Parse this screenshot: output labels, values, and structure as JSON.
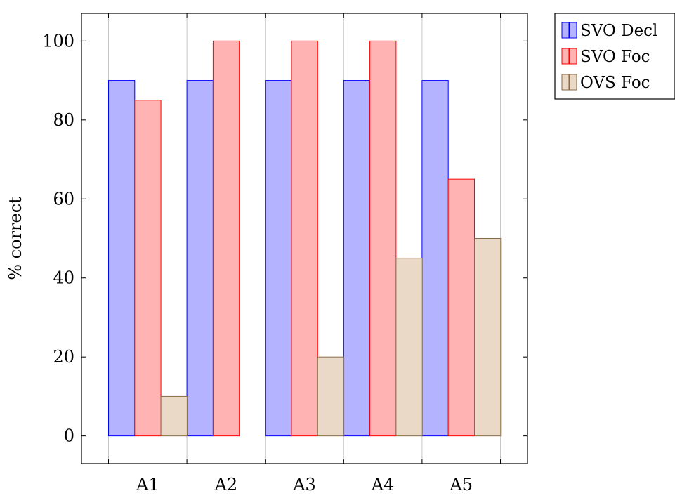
{
  "chart_data": {
    "type": "bar",
    "title": "",
    "xlabel": "",
    "ylabel": "% correct",
    "categories": [
      "A1",
      "A2",
      "A3",
      "A4",
      "A5"
    ],
    "ylim": [
      -7,
      107
    ],
    "yticks": [
      0,
      20,
      40,
      60,
      80,
      100
    ],
    "grid": "vertical",
    "legend_position": "outside-top-right",
    "series": [
      {
        "name": "SVO Decl",
        "values": [
          90,
          90,
          90,
          90,
          90
        ],
        "fill": "#b3b3ff",
        "stroke": "#0000ff"
      },
      {
        "name": "SVO Foc",
        "values": [
          85,
          100,
          100,
          100,
          65
        ],
        "fill": "#ffb3b3",
        "stroke": "#ff0000"
      },
      {
        "name": "OVS Foc",
        "values": [
          10,
          0,
          20,
          45,
          50
        ],
        "fill": "#ead9c6",
        "stroke": "#8a6a44"
      }
    ]
  }
}
